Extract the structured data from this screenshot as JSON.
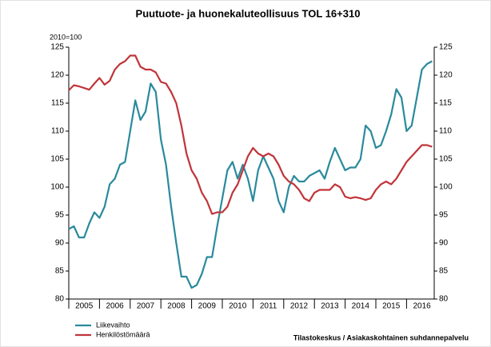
{
  "chart_data": {
    "type": "line",
    "title": "Puutuote- ja huonekaluteollisuus TOL 16+310",
    "y_label": "2010=100",
    "source": "Tilastokeskus / Asiakaskohtainen suhdannepalvelu",
    "categories": [
      "2005",
      null,
      null,
      null,
      null,
      null,
      "2006",
      null,
      null,
      null,
      null,
      null,
      "2007",
      null,
      null,
      null,
      null,
      null,
      "2008",
      null,
      null,
      null,
      null,
      null,
      "2009",
      null,
      null,
      null,
      null,
      null,
      "2010",
      null,
      null,
      null,
      null,
      null,
      "2011",
      null,
      null,
      null,
      null,
      null,
      "2012",
      null,
      null,
      null,
      null,
      null,
      "2013",
      null,
      null,
      null,
      null,
      null,
      "2014",
      null,
      null,
      null,
      null,
      null,
      "2015",
      null,
      null,
      null,
      null,
      null,
      "2016",
      null,
      null,
      null,
      null,
      null
    ],
    "series": [
      {
        "name": "Liikevaihto",
        "color": "#2a8a9c",
        "values": [
          92.5,
          93,
          91,
          91,
          93.5,
          95.5,
          94.5,
          96.5,
          100.5,
          101.5,
          104,
          104.5,
          110,
          115.5,
          112,
          113.5,
          118.5,
          117,
          108.5,
          104,
          96.5,
          90,
          84,
          84,
          82,
          82.5,
          84.5,
          87.5,
          87.5,
          93,
          98,
          103,
          104.5,
          101.5,
          104,
          101.5,
          97.5,
          103,
          105.5,
          103.5,
          101.5,
          97.5,
          95.5,
          100,
          102,
          101,
          101,
          102,
          102.5,
          103,
          101.5,
          104.5,
          107,
          105,
          103,
          103.5,
          103.5,
          105,
          111,
          110,
          107,
          107.5,
          110,
          113,
          117.5,
          116,
          110,
          111,
          116,
          121,
          122,
          122.5
        ]
      },
      {
        "name": "Henkilöstömäärä",
        "color": "#c0353a",
        "values": [
          117.3,
          118.2,
          118,
          117.7,
          117.4,
          118.5,
          119.5,
          118.3,
          119,
          121,
          122,
          122.5,
          123.5,
          123.5,
          121.5,
          121,
          121,
          120.5,
          118.8,
          118.5,
          117,
          115,
          111,
          106,
          103,
          101.5,
          99,
          97.5,
          95.2,
          95.5,
          95.5,
          96.5,
          99,
          100.5,
          103,
          105.5,
          107,
          106,
          105.5,
          106,
          105.5,
          104,
          102,
          101,
          100.5,
          99.5,
          98,
          97.5,
          99,
          99.5,
          99.5,
          99.5,
          100.5,
          100,
          98.3,
          98,
          98.2,
          98,
          97.7,
          98,
          99.5,
          100.5,
          101,
          100.5,
          101.5,
          103,
          104.5,
          105.5,
          106.5,
          107.5,
          107.5,
          107.2
        ]
      }
    ],
    "ylim": [
      80,
      125
    ],
    "yticks": [
      80,
      85,
      90,
      95,
      100,
      105,
      110,
      115,
      120,
      125
    ]
  }
}
